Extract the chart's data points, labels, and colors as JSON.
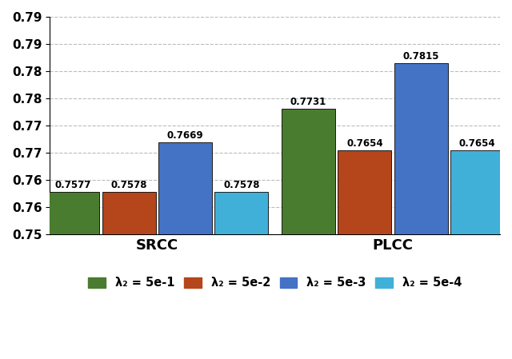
{
  "groups": [
    "SRCC",
    "PLCC"
  ],
  "bar_labels": [
    "λ₂ = 5e-1",
    "λ₂ = 5e-2",
    "λ₂ = 5e-3",
    "λ₂ = 5e-4"
  ],
  "colors": [
    "#4a7c2f",
    "#b5451b",
    "#4472c4",
    "#41b0d8"
  ],
  "values": {
    "SRCC": [
      0.7577,
      0.7578,
      0.7669,
      0.7578
    ],
    "PLCC": [
      0.7731,
      0.7654,
      0.7815,
      0.7654
    ]
  },
  "ylim": [
    0.75,
    0.79
  ],
  "yticks": [
    0.75,
    0.755,
    0.76,
    0.765,
    0.77,
    0.775,
    0.78,
    0.785,
    0.79
  ],
  "bar_width": 0.1,
  "annotation_fontsize": 8.5,
  "xlabel_fontsize": 13,
  "legend_fontsize": 10.5,
  "tick_fontsize": 11,
  "background_color": "#ffffff",
  "grid_color": "#bbbbbb"
}
